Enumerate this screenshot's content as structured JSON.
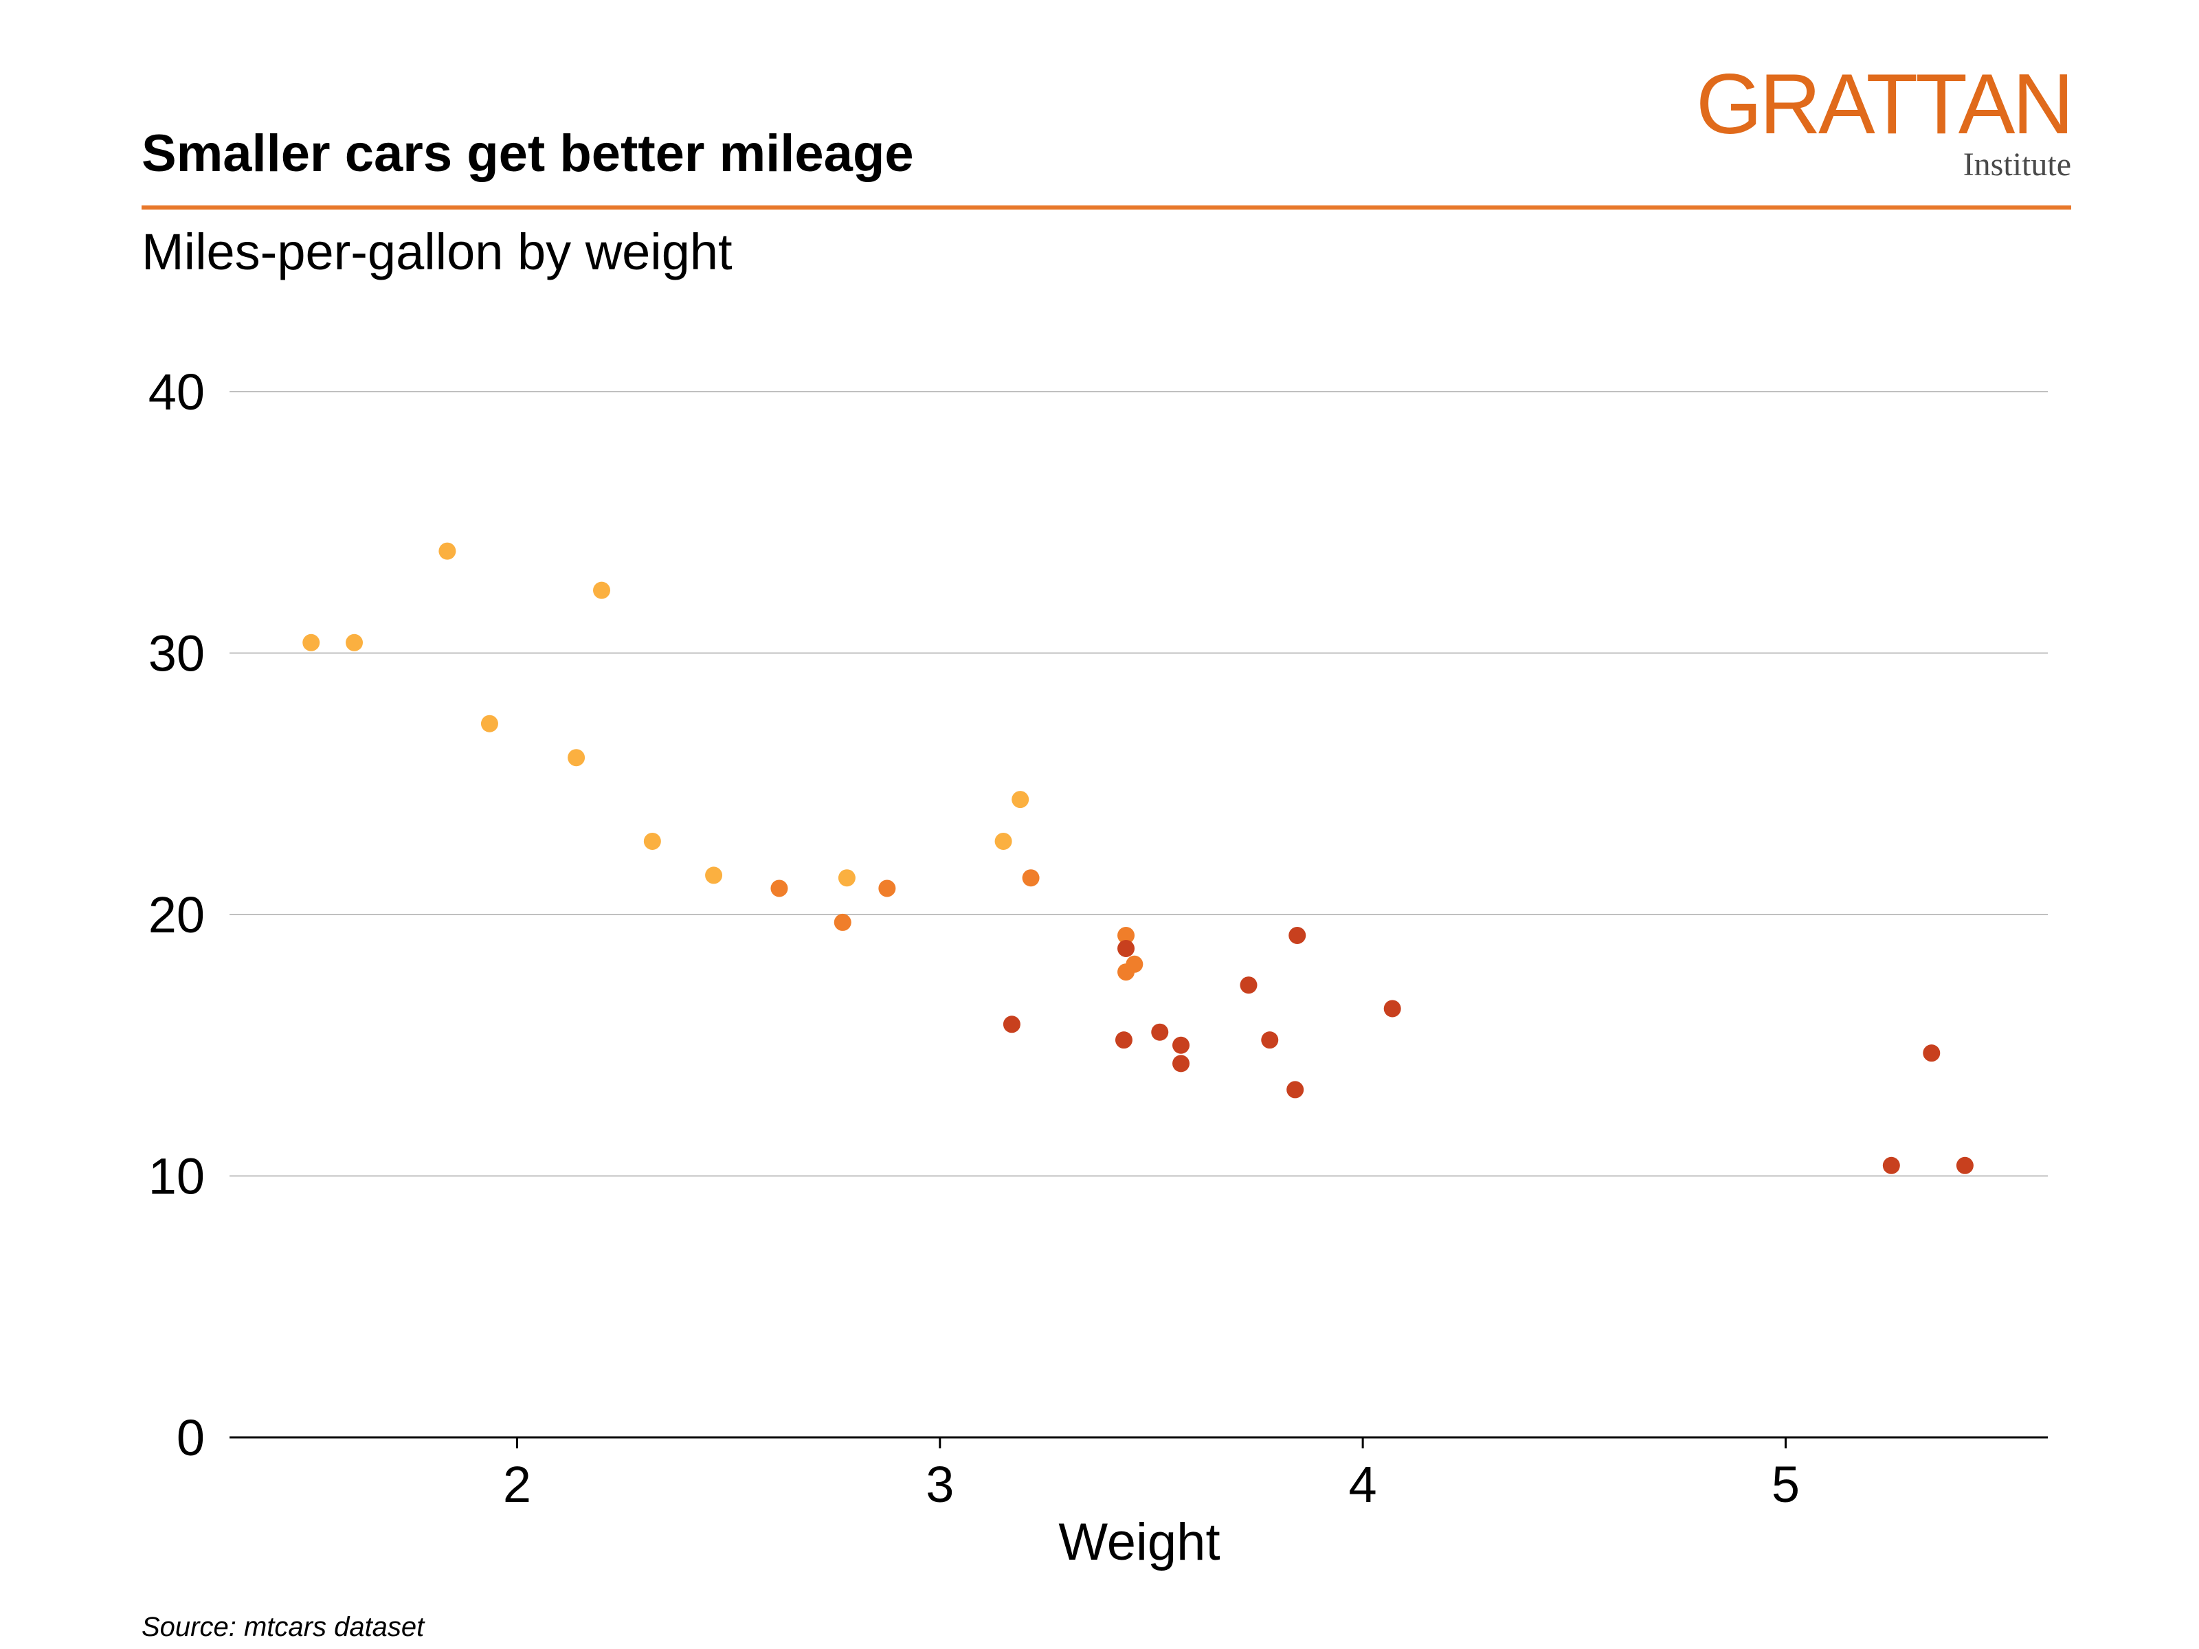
{
  "logo": {
    "wordmark": "GRATTAN",
    "subtext": "Institute",
    "color": "#e06a1b"
  },
  "colors": {
    "accent_rule": "#e8782a",
    "gridline": "#c0c0c0",
    "axis_line": "#000000"
  },
  "source": "Source: mtcars dataset",
  "chart_data": {
    "type": "scatter",
    "title": "Smaller cars get better mileage",
    "subtitle": "Miles-per-gallon by weight",
    "xlabel": "Weight",
    "ylabel": "",
    "xlim": [
      1.32,
      5.62
    ],
    "ylim": [
      0,
      40
    ],
    "x_ticks": [
      2,
      3,
      4,
      5
    ],
    "y_ticks": [
      0,
      10,
      20,
      30,
      40
    ],
    "grid": "horizontal",
    "legend": "none",
    "series": [
      {
        "color": "#fbb040",
        "points": [
          {
            "x": 1.513,
            "y": 30.4
          },
          {
            "x": 1.615,
            "y": 30.4
          },
          {
            "x": 1.835,
            "y": 33.9
          },
          {
            "x": 1.935,
            "y": 27.3
          },
          {
            "x": 2.14,
            "y": 26.0
          },
          {
            "x": 2.2,
            "y": 32.4
          },
          {
            "x": 2.32,
            "y": 22.8
          },
          {
            "x": 2.465,
            "y": 21.5
          },
          {
            "x": 2.78,
            "y": 21.4
          },
          {
            "x": 3.15,
            "y": 22.8
          },
          {
            "x": 3.19,
            "y": 24.4
          }
        ]
      },
      {
        "color": "#f07e2a",
        "points": [
          {
            "x": 2.62,
            "y": 21.0
          },
          {
            "x": 2.77,
            "y": 19.7
          },
          {
            "x": 2.875,
            "y": 21.0
          },
          {
            "x": 3.215,
            "y": 21.4
          },
          {
            "x": 3.44,
            "y": 19.2
          },
          {
            "x": 3.44,
            "y": 17.8
          },
          {
            "x": 3.46,
            "y": 18.1
          }
        ]
      },
      {
        "color": "#c8401e",
        "points": [
          {
            "x": 3.17,
            "y": 15.8
          },
          {
            "x": 3.435,
            "y": 15.2
          },
          {
            "x": 3.44,
            "y": 18.7
          },
          {
            "x": 3.52,
            "y": 15.5
          },
          {
            "x": 3.57,
            "y": 15.0
          },
          {
            "x": 3.57,
            "y": 14.3
          },
          {
            "x": 3.73,
            "y": 17.3
          },
          {
            "x": 3.78,
            "y": 15.2
          },
          {
            "x": 3.84,
            "y": 13.3
          },
          {
            "x": 3.845,
            "y": 19.2
          },
          {
            "x": 4.07,
            "y": 16.4
          },
          {
            "x": 5.25,
            "y": 10.4
          },
          {
            "x": 5.345,
            "y": 14.7
          },
          {
            "x": 5.424,
            "y": 10.4
          }
        ]
      }
    ]
  }
}
